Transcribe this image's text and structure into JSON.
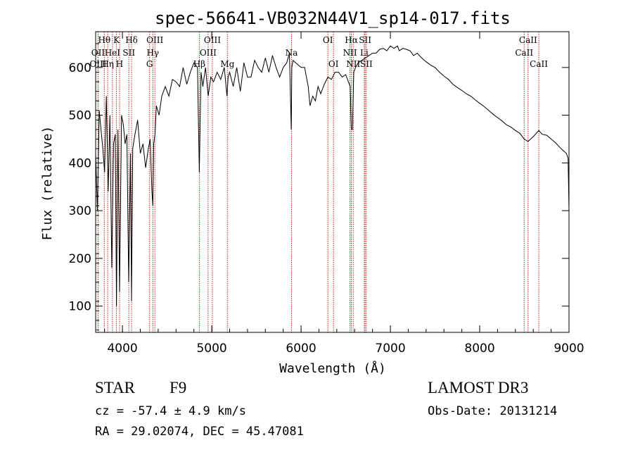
{
  "chart_data": {
    "type": "line",
    "title": "spec-56641-VB032N44V1_sp14-017.fits",
    "xlabel": "Wavelength (Å)",
    "ylabel": "Flux (relative)",
    "xlim": [
      3700,
      9000
    ],
    "ylim": [
      45,
      675
    ],
    "xticks": [
      4000,
      5000,
      6000,
      7000,
      8000,
      9000
    ],
    "yticks": [
      100,
      200,
      300,
      400,
      500,
      600
    ],
    "series": [
      {
        "name": "flux",
        "x": [
          3700,
          3720,
          3740,
          3760,
          3780,
          3800,
          3820,
          3840,
          3860,
          3880,
          3900,
          3920,
          3933,
          3950,
          3968,
          3990,
          4010,
          4030,
          4050,
          4070,
          4090,
          4102,
          4115,
          4140,
          4170,
          4200,
          4230,
          4260,
          4290,
          4310,
          4330,
          4340,
          4350,
          4365,
          4380,
          4410,
          4440,
          4480,
          4520,
          4560,
          4600,
          4640,
          4680,
          4720,
          4760,
          4800,
          4840,
          4861,
          4880,
          4900,
          4930,
          4960,
          4990,
          5020,
          5060,
          5100,
          5140,
          5170,
          5184,
          5200,
          5240,
          5280,
          5320,
          5360,
          5400,
          5440,
          5480,
          5520,
          5560,
          5600,
          5640,
          5680,
          5720,
          5760,
          5800,
          5840,
          5870,
          5890,
          5896,
          5910,
          5940,
          5970,
          6000,
          6040,
          6080,
          6100,
          6130,
          6160,
          6190,
          6220,
          6260,
          6300,
          6340,
          6380,
          6420,
          6460,
          6500,
          6530,
          6550,
          6563,
          6575,
          6590,
          6610,
          6640,
          6680,
          6720,
          6760,
          6800,
          6840,
          6880,
          6920,
          6960,
          7000,
          7040,
          7080,
          7100,
          7140,
          7180,
          7220,
          7260,
          7300,
          7350,
          7400,
          7450,
          7500,
          7550,
          7600,
          7650,
          7700,
          7750,
          7800,
          7850,
          7900,
          7950,
          8000,
          8050,
          8100,
          8150,
          8200,
          8250,
          8300,
          8350,
          8400,
          8450,
          8498,
          8542,
          8600,
          8662,
          8700,
          8750,
          8800,
          8850,
          8900,
          8940,
          8970,
          8990,
          9000
        ],
        "y": [
          420,
          300,
          510,
          470,
          430,
          380,
          540,
          340,
          500,
          180,
          440,
          460,
          100,
          470,
          130,
          500,
          480,
          440,
          460,
          150,
          420,
          110,
          430,
          460,
          490,
          420,
          440,
          390,
          430,
          450,
          340,
          310,
          440,
          460,
          520,
          500,
          540,
          560,
          540,
          575,
          570,
          560,
          600,
          565,
          590,
          610,
          600,
          380,
          590,
          560,
          600,
          540,
          580,
          570,
          590,
          575,
          600,
          540,
          580,
          590,
          560,
          600,
          550,
          610,
          580,
          580,
          615,
          600,
          590,
          620,
          590,
          625,
          600,
          580,
          600,
          610,
          630,
          470,
          600,
          615,
          610,
          605,
          600,
          600,
          560,
          520,
          540,
          530,
          560,
          545,
          565,
          580,
          575,
          590,
          590,
          580,
          585,
          570,
          560,
          470,
          470,
          590,
          600,
          610,
          615,
          620,
          625,
          630,
          630,
          638,
          640,
          635,
          645,
          640,
          645,
          635,
          640,
          638,
          635,
          625,
          630,
          620,
          612,
          605,
          600,
          590,
          582,
          575,
          565,
          558,
          552,
          545,
          540,
          532,
          525,
          518,
          510,
          502,
          495,
          488,
          480,
          475,
          468,
          462,
          450,
          445,
          455,
          468,
          460,
          458,
          450,
          442,
          432,
          425,
          420,
          410,
          300
        ]
      }
    ],
    "line_markers": [
      {
        "label": "Hθ",
        "x": 3797,
        "row": 1
      },
      {
        "label": "OII",
        "x": 3727,
        "row": 2
      },
      {
        "label": "OIII",
        "x": 3727,
        "row": 3
      },
      {
        "label": "K",
        "x": 3933,
        "row": 1
      },
      {
        "label": "HeI",
        "x": 3888,
        "row": 2
      },
      {
        "label": "Hη",
        "x": 3835,
        "row": 3
      },
      {
        "label": "Hδ",
        "x": 4102,
        "row": 1
      },
      {
        "label": "SII",
        "x": 4072,
        "row": 2
      },
      {
        "label": "H",
        "x": 3968,
        "row": 3
      },
      {
        "label": "OIII",
        "x": 4363,
        "row": 1
      },
      {
        "label": "Hγ",
        "x": 4340,
        "row": 2
      },
      {
        "label": "G",
        "x": 4304,
        "row": 3
      },
      {
        "label": "OIII",
        "x": 5007,
        "row": 1
      },
      {
        "label": "OIII",
        "x": 4959,
        "row": 2
      },
      {
        "label": "Hβ",
        "x": 4861,
        "row": 3
      },
      {
        "label": "Mg",
        "x": 5175,
        "row": 3
      },
      {
        "label": "Na",
        "x": 5893,
        "row": 2
      },
      {
        "label": "OI",
        "x": 6300,
        "row": 1
      },
      {
        "label": "OI",
        "x": 6363,
        "row": 3
      },
      {
        "label": "Hα",
        "x": 6563,
        "row": 1
      },
      {
        "label": "SII",
        "x": 6717,
        "row": 1
      },
      {
        "label": "NII",
        "x": 6548,
        "row": 2
      },
      {
        "label": "Li",
        "x": 6708,
        "row": 2
      },
      {
        "label": "NII",
        "x": 6584,
        "row": 3
      },
      {
        "label": "SII",
        "x": 6731,
        "row": 3
      },
      {
        "label": "CaII",
        "x": 8542,
        "row": 1
      },
      {
        "label": "CaII",
        "x": 8498,
        "row": 2
      },
      {
        "label": "CaII",
        "x": 8662,
        "row": 3
      }
    ],
    "grid": false,
    "legend": "none"
  },
  "info": {
    "class": "STAR",
    "subclass": "F9",
    "survey": "LAMOST DR3",
    "cz": "cz = -57.4 ± 4.9 km/s",
    "obs_date": "Obs-Date: 20131214",
    "coords": "RA =  29.02074, DEC =  45.47081"
  },
  "colors": {
    "spectrum": "#000000",
    "marker": "#cc2222",
    "axes": "#000000"
  }
}
